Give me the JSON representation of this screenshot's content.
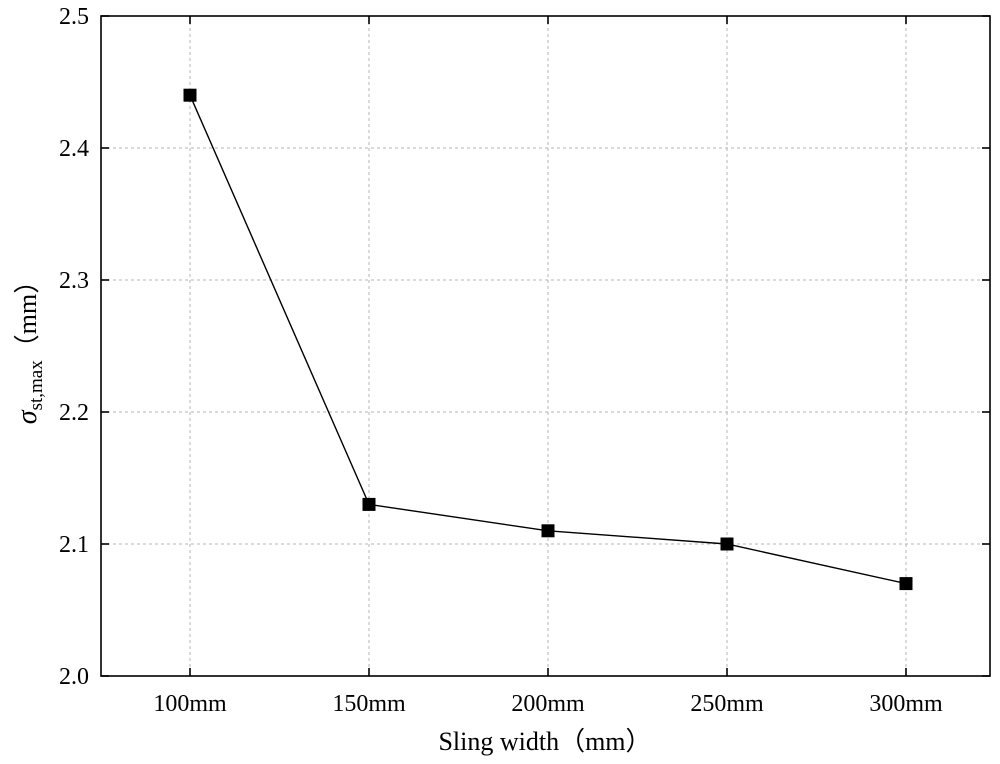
{
  "chart_data": {
    "type": "line",
    "title": "",
    "xlabel": "Sling width（mm）",
    "ylabel": {
      "symbol": "σ",
      "subscript": "st,max",
      "unit": "（mm）"
    },
    "categories": [
      "100mm",
      "150mm",
      "200mm",
      "250mm",
      "300mm"
    ],
    "series": [
      {
        "name": "σst,max",
        "values": [
          2.44,
          2.13,
          2.11,
          2.1,
          2.07
        ],
        "marker": "square",
        "color": "#000000"
      }
    ],
    "ylim": [
      2.0,
      2.5
    ],
    "yticks": [
      "2.0",
      "2.1",
      "2.2",
      "2.3",
      "2.4",
      "2.5"
    ],
    "grid": true,
    "legend": "none"
  }
}
